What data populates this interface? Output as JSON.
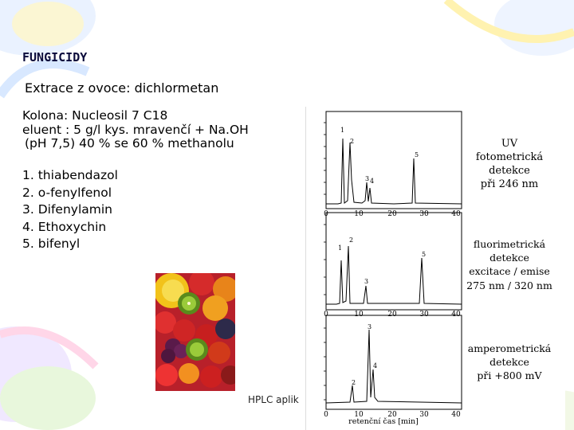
{
  "slide": {
    "title": "FUNGICIDY",
    "extraction": "Extrace z ovoce: dichlormetan",
    "column_line": "Kolona: Nucleosil 7 C18",
    "eluent_line": "eluent : 5 g/l kys. mravenčí + Na.OH",
    "ph_line": "(pH 7,5) 40 % se 60 % methanolu",
    "bullet_glyph": "",
    "compounds": [
      {
        "num": "1.",
        "name": "thiabendazol"
      },
      {
        "num": "2.",
        "name": "o-fenylfenol"
      },
      {
        "num": "3.",
        "name": "Difenylamin"
      },
      {
        "num": "4.",
        "name": "Ethoxychin"
      },
      {
        "num": "5.",
        "name": "bifenyl"
      }
    ],
    "footer": "HPLC aplik"
  },
  "figure": {
    "panels": [
      {
        "label_lines": [
          "UV",
          "fotometrická",
          "detekce",
          "při 246 nm"
        ]
      },
      {
        "label_lines": [
          "fluorimetrická",
          "detekce",
          "excitace / emise",
          "275 nm / 320 nm"
        ]
      },
      {
        "label_lines": [
          "amperometrická",
          "detekce",
          "při +800 mV"
        ]
      }
    ],
    "x_ticks": [
      "0",
      "10",
      "20",
      "30",
      "40"
    ],
    "x_axis_label": "retenční čas [min]"
  },
  "colors": {
    "title": "#0a0a3a",
    "deco_blue": "#cfe0ff",
    "deco_yellow": "#fff4b0",
    "deco_green": "#dff5c8"
  }
}
